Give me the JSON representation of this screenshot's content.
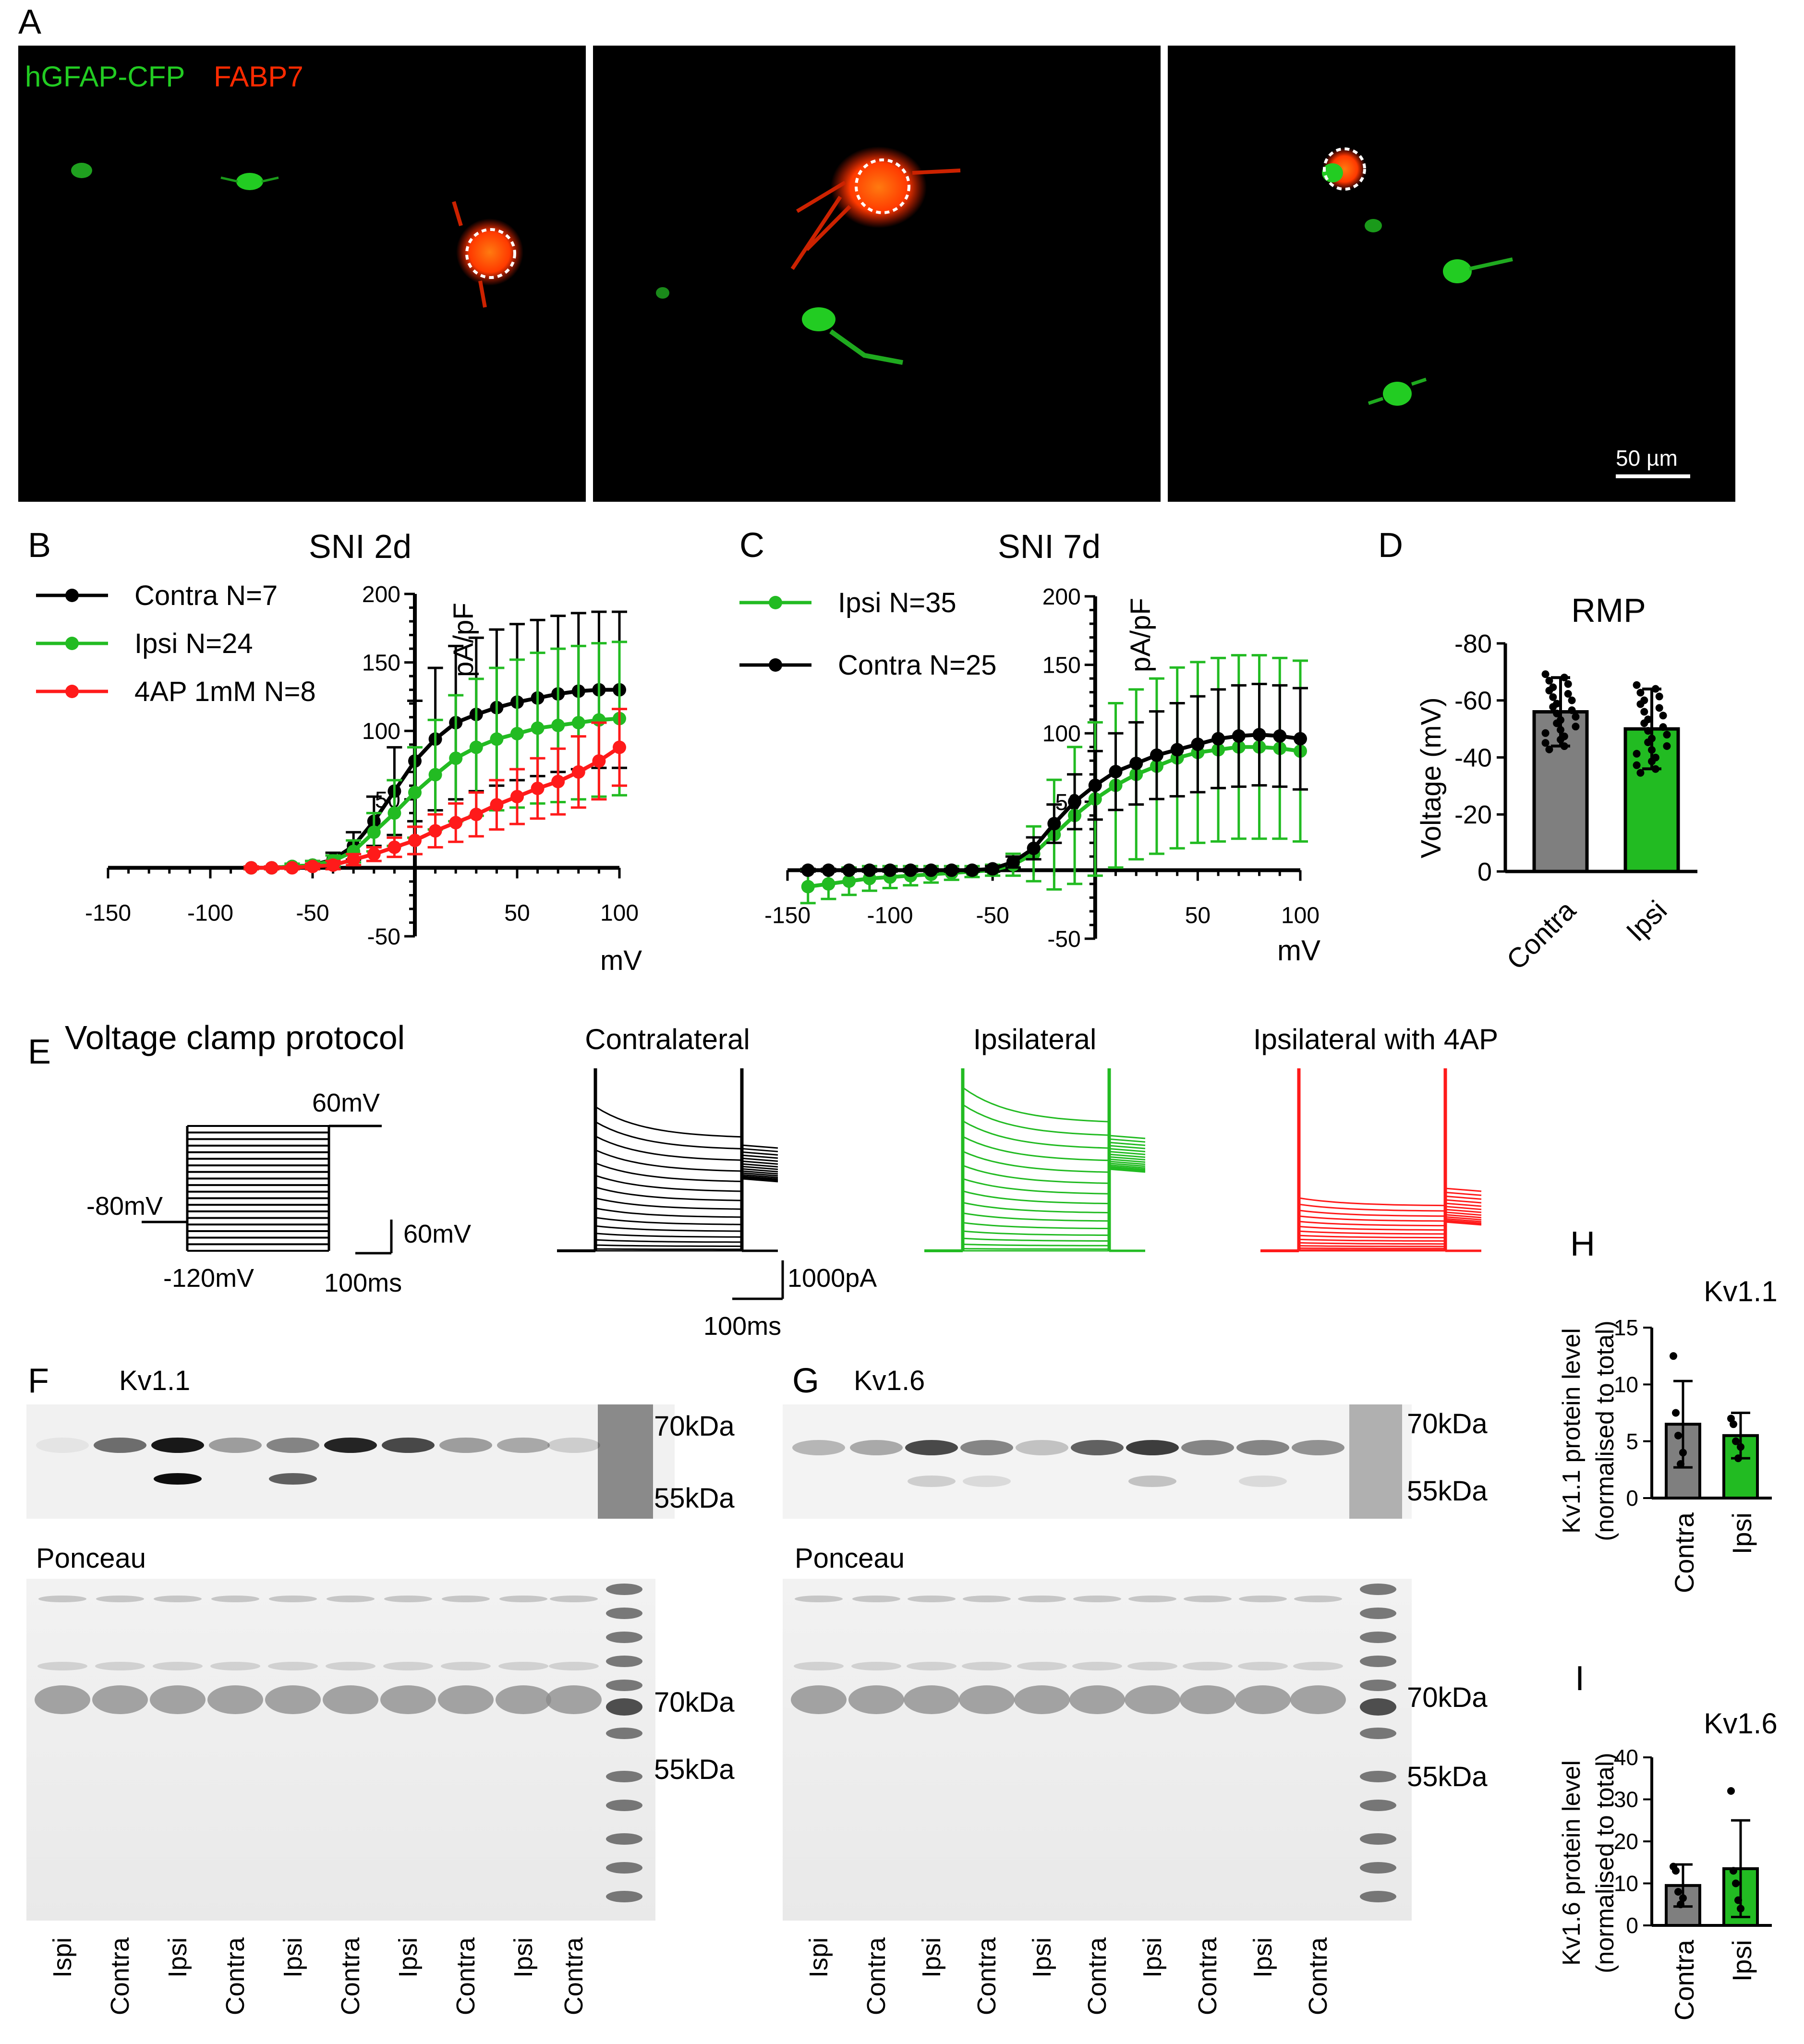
{
  "panels": {
    "A": {
      "label": "A",
      "stain_green": "hGFAP-CFP",
      "stain_red": "FABP7",
      "scalebar": "50 µm",
      "colors": {
        "green": "#22cc22",
        "red": "#ff2a00"
      }
    },
    "B": {
      "label": "B"
    },
    "C": {
      "label": "C"
    },
    "D": {
      "label": "D"
    },
    "E": {
      "label": "E",
      "title": "Voltage clamp protocol",
      "v_top": "60mV",
      "v_hold": "-80mV",
      "v_bottom": "-120mV",
      "scale_v": "60mV",
      "scale_t": "100ms",
      "trace_titles": [
        "Contralateral",
        "Ipsilateral",
        "Ipsilateral with 4AP"
      ],
      "trace_scale_i": "1000pA",
      "trace_scale_t": "100ms"
    },
    "F": {
      "label": "F",
      "protein": "Kv1.1",
      "markers": [
        "70kDa",
        "55kDa"
      ],
      "ponceau": "Ponceau",
      "ponceau_markers": [
        "70kDa",
        "55kDa"
      ],
      "lanes": [
        "Ispi",
        "Contra",
        "Ipsi",
        "Contra",
        "Ipsi",
        "Contra",
        "Ipsi",
        "Contra",
        "Ipsi",
        "Contra"
      ]
    },
    "G": {
      "label": "G",
      "protein": "Kv1.6",
      "markers": [
        "70kDa",
        "55kDa"
      ],
      "ponceau": "Ponceau",
      "ponceau_markers": [
        "70kDa",
        "55kDa"
      ],
      "lanes": [
        "Ispi",
        "Contra",
        "Ipsi",
        "Contra",
        "Ipsi",
        "Contra",
        "Ipsi",
        "Contra",
        "Ipsi",
        "Contra"
      ]
    },
    "H": {
      "label": "H"
    },
    "I": {
      "label": "I"
    }
  },
  "chart_data": [
    {
      "id": "B",
      "type": "line",
      "title": "SNI 2d",
      "xlabel": "mV",
      "ylabel": "pA/pF",
      "xlim": [
        -150,
        100
      ],
      "ylim": [
        -50,
        200
      ],
      "xticks": [
        -150,
        -100,
        -50,
        50,
        100
      ],
      "yticks": [
        -50,
        50,
        100,
        150,
        200
      ],
      "x": [
        -80,
        -70,
        -60,
        -50,
        -40,
        -30,
        -20,
        -10,
        0,
        10,
        20,
        30,
        40,
        50,
        60,
        70,
        80,
        90,
        100
      ],
      "series": [
        {
          "name": "Contra N=7",
          "color": "#000000",
          "values": [
            0,
            0,
            1,
            2,
            6,
            16,
            34,
            56,
            78,
            94,
            106,
            112,
            117,
            121,
            124,
            127,
            129,
            130,
            130
          ],
          "err": [
            1,
            1,
            2,
            3,
            5,
            10,
            18,
            32,
            44,
            52,
            56,
            56,
            57,
            57,
            57,
            57,
            57,
            57,
            57
          ]
        },
        {
          "name": "Ipsi N=24",
          "color": "#22bb22",
          "values": [
            0,
            0,
            1,
            2,
            5,
            12,
            26,
            40,
            55,
            68,
            80,
            88,
            94,
            98,
            102,
            104,
            106,
            108,
            109
          ],
          "err": [
            1,
            1,
            2,
            3,
            4,
            8,
            14,
            24,
            33,
            40,
            46,
            50,
            52,
            54,
            55,
            56,
            56,
            56,
            56
          ]
        },
        {
          "name": "4AP 1mM N=8",
          "color": "#ff1a1a",
          "values": [
            0,
            0,
            0,
            1,
            2,
            6,
            10,
            15,
            20,
            27,
            33,
            39,
            46,
            52,
            58,
            63,
            70,
            78,
            88
          ],
          "err": [
            1,
            1,
            1,
            2,
            3,
            4,
            5,
            7,
            10,
            12,
            14,
            16,
            18,
            20,
            22,
            24,
            26,
            28,
            28
          ]
        }
      ],
      "legend_position": "top-left"
    },
    {
      "id": "C",
      "type": "line",
      "title": "SNI 7d",
      "xlabel": "mV",
      "ylabel": "pA/pF",
      "xlim": [
        -150,
        100
      ],
      "ylim": [
        -50,
        200
      ],
      "xticks": [
        -150,
        -100,
        -50,
        50,
        100
      ],
      "yticks": [
        -50,
        50,
        100,
        150,
        200
      ],
      "x": [
        -140,
        -130,
        -120,
        -110,
        -100,
        -90,
        -80,
        -70,
        -60,
        -50,
        -40,
        -30,
        -20,
        -10,
        0,
        10,
        20,
        30,
        40,
        50,
        60,
        70,
        80,
        90,
        100
      ],
      "series": [
        {
          "name": "Ipsi N=35",
          "color": "#22bb22",
          "values": [
            -12,
            -10,
            -8,
            -6,
            -5,
            -4,
            -3,
            -2,
            -1,
            0,
            4,
            12,
            26,
            40,
            52,
            62,
            70,
            76,
            82,
            86,
            88,
            90,
            90,
            89,
            87
          ],
          "err": [
            12,
            11,
            10,
            9,
            8,
            7,
            6,
            5,
            4,
            4,
            8,
            20,
            40,
            50,
            56,
            60,
            62,
            64,
            66,
            66,
            67,
            67,
            67,
            66,
            66
          ]
        },
        {
          "name": "Contra N=25",
          "color": "#000000",
          "values": [
            0,
            0,
            0,
            0,
            0,
            0,
            0,
            0,
            0,
            1,
            6,
            16,
            34,
            50,
            62,
            72,
            78,
            84,
            88,
            92,
            96,
            98,
            99,
            98,
            96
          ],
          "err": [
            1,
            1,
            1,
            1,
            1,
            1,
            1,
            1,
            1,
            2,
            4,
            8,
            14,
            20,
            25,
            28,
            30,
            32,
            34,
            35,
            36,
            37,
            37,
            37,
            37
          ]
        }
      ],
      "legend_position": "top-left"
    },
    {
      "id": "D",
      "type": "bar",
      "title": "RMP",
      "ylabel": "Voltage (mV)",
      "ylim": [
        -80,
        0
      ],
      "yticks": [
        0,
        -20,
        -40,
        -60,
        -80
      ],
      "categories": [
        "Contra",
        "Ipsi"
      ],
      "values": [
        -56,
        -50
      ],
      "err": [
        12,
        14
      ],
      "colors": [
        "#7f7f7f",
        "#22bb22"
      ]
    },
    {
      "id": "H",
      "type": "bar",
      "title": "Kv1.1",
      "ylabel": "Kv1.1 protein level\n(normalised to total)",
      "ylim": [
        0,
        15
      ],
      "yticks": [
        0,
        5,
        10,
        15
      ],
      "categories": [
        "Contra",
        "Ipsi"
      ],
      "values": [
        6.5,
        5.5
      ],
      "err": [
        3.8,
        2.0
      ],
      "points": [
        [
          12.5,
          7.5,
          5.5,
          3.0,
          4.0
        ],
        [
          7.0,
          6.5,
          5.0,
          3.5,
          4.5
        ]
      ],
      "colors": [
        "#7f7f7f",
        "#22bb22"
      ]
    },
    {
      "id": "I",
      "type": "bar",
      "title": "Kv1.6",
      "ylabel": "Kv1.6 protein level\n(normalised to total)",
      "ylim": [
        0,
        40
      ],
      "yticks": [
        0,
        10,
        20,
        30,
        40
      ],
      "categories": [
        "Contra",
        "Ipsi"
      ],
      "values": [
        9.5,
        13.5
      ],
      "err": [
        5.0,
        11.5
      ],
      "points": [
        [
          14.0,
          13.0,
          8.0,
          5.0,
          6.5
        ],
        [
          32.0,
          13.0,
          10.0,
          6.0,
          4.0
        ]
      ],
      "colors": [
        "#7f7f7f",
        "#22bb22"
      ]
    }
  ]
}
